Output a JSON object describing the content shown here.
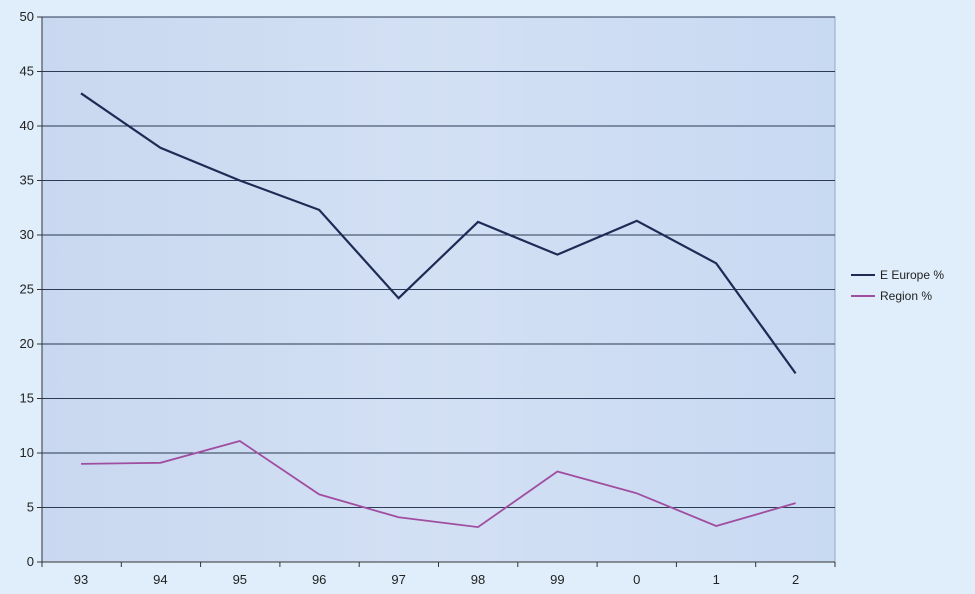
{
  "chart_data": {
    "type": "line",
    "title": "",
    "xlabel": "",
    "ylabel": "",
    "categories": [
      "93",
      "94",
      "95",
      "96",
      "97",
      "98",
      "99",
      "0",
      "1",
      "2"
    ],
    "ylim": [
      0,
      50
    ],
    "yticks": [
      0,
      5,
      10,
      15,
      20,
      25,
      30,
      35,
      40,
      45,
      50
    ],
    "grid": true,
    "legend_position": "right",
    "series": [
      {
        "name": "E Europe %",
        "color": "#1f2a55",
        "values": [
          43,
          38,
          35,
          32.3,
          24.2,
          31.2,
          28.2,
          31.3,
          27.4,
          17.3
        ]
      },
      {
        "name": "Region %",
        "color": "#a04fa0",
        "values": [
          9,
          9.1,
          11.1,
          6.2,
          4.1,
          3.2,
          8.3,
          6.3,
          3.3,
          5.4
        ]
      }
    ]
  }
}
